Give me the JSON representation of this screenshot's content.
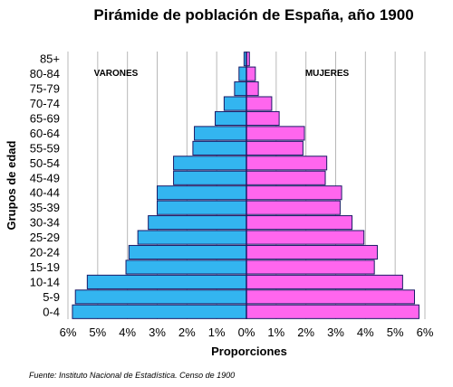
{
  "chart_data": {
    "type": "bar",
    "orientation": "horizontal-pyramid",
    "title": "Pirámide de población de España, año 1900",
    "xlabel": "Proporciones",
    "ylabel": "Grupos de edad",
    "xlim": [
      -6,
      6
    ],
    "x_ticks": [
      "6%",
      "5%",
      "4%",
      "3%",
      "2%",
      "1%",
      "0%",
      "1%",
      "2%",
      "3%",
      "4%",
      "5%",
      "6%"
    ],
    "grid": "vertical",
    "categories": [
      "0-4",
      "5-9",
      "10-14",
      "15-19",
      "20-24",
      "25-29",
      "30-34",
      "35-39",
      "40-44",
      "45-49",
      "50-54",
      "55-59",
      "60-64",
      "65-69",
      "70-74",
      "75-79",
      "80-84",
      "85+"
    ],
    "annotations": {
      "left": "VARONES",
      "right": "MUJERES"
    },
    "series": [
      {
        "name": "VARONES",
        "color": "#33b5f0",
        "values": [
          5.85,
          5.75,
          5.35,
          4.05,
          3.95,
          3.65,
          3.3,
          3.0,
          3.0,
          2.45,
          2.45,
          1.8,
          1.75,
          1.05,
          0.75,
          0.4,
          0.25,
          0.08
        ]
      },
      {
        "name": "MUJERES",
        "color": "#ff66ee",
        "values": [
          5.8,
          5.65,
          5.25,
          4.3,
          4.4,
          3.95,
          3.55,
          3.15,
          3.2,
          2.65,
          2.7,
          1.9,
          1.95,
          1.1,
          0.85,
          0.4,
          0.3,
          0.1
        ]
      }
    ],
    "source": "Fuente: Instituto Nacional de Estadística. Censo de 1900"
  }
}
